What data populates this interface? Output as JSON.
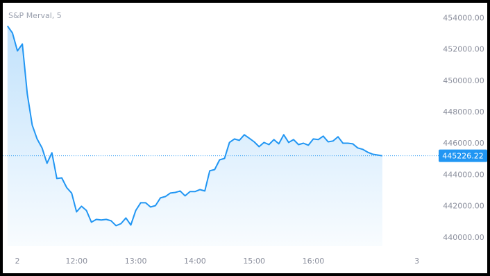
{
  "chart_data": {
    "type": "line",
    "title": "S&P Merval, 5",
    "x": [
      650,
      655,
      660,
      665,
      670,
      675,
      680,
      685,
      690,
      695,
      700,
      705,
      710,
      715,
      720,
      725,
      730,
      735,
      740,
      745,
      750,
      755,
      760,
      765,
      770,
      775,
      780,
      785,
      790,
      795,
      800,
      805,
      810,
      815,
      820,
      825,
      830,
      835,
      840,
      845,
      850,
      855,
      860,
      865,
      870,
      875,
      880,
      885,
      890,
      895,
      900,
      905,
      910,
      915,
      920,
      925,
      930,
      935,
      940,
      945,
      950,
      955,
      960,
      965,
      970,
      975,
      980,
      985,
      990,
      995,
      1000,
      1005,
      1010,
      1015,
      1020,
      1025,
      1030
    ],
    "series": [
      {
        "name": "S&P Merval",
        "color": "#2196f3",
        "values": [
          453510,
          453070,
          451920,
          452360,
          449180,
          447190,
          446300,
          445730,
          444750,
          445420,
          443780,
          443820,
          443200,
          442850,
          441650,
          442010,
          441740,
          440990,
          441170,
          441130,
          441170,
          441080,
          440770,
          440900,
          441260,
          440810,
          441740,
          442230,
          442230,
          441960,
          442050,
          442540,
          442630,
          442850,
          442890,
          442980,
          442670,
          442940,
          442940,
          443070,
          442980,
          444270,
          444350,
          444970,
          445060,
          446080,
          446300,
          446210,
          446570,
          446350,
          446120,
          445810,
          446080,
          445940,
          446260,
          445990,
          446570,
          446080,
          446260,
          445940,
          446030,
          445900,
          446300,
          446260,
          446480,
          446120,
          446170,
          446440,
          446030,
          446030,
          445990,
          445730,
          445640,
          445460,
          445330,
          445280,
          445226.22
        ]
      }
    ],
    "xlim": [
      648,
      1080
    ],
    "xticks": [
      {
        "value": 660,
        "label": "2"
      },
      {
        "value": 720,
        "label": "12:00"
      },
      {
        "value": 780,
        "label": "13:00"
      },
      {
        "value": 840,
        "label": "14:00"
      },
      {
        "value": 900,
        "label": "15:00"
      },
      {
        "value": 960,
        "label": "16:00"
      },
      {
        "value": 1065,
        "label": "3"
      }
    ],
    "ylim": [
      439460,
      454990
    ],
    "yticks": [
      {
        "value": 440000,
        "label": "440000.00"
      },
      {
        "value": 442000,
        "label": "442000.00"
      },
      {
        "value": 444000,
        "label": "444000.00"
      },
      {
        "value": 446000,
        "label": "446000.00"
      },
      {
        "value": 448000,
        "label": "448000.00"
      },
      {
        "value": 450000,
        "label": "450000.00"
      },
      {
        "value": 452000,
        "label": "452000.00"
      },
      {
        "value": 454000,
        "label": "454000.00"
      }
    ],
    "grid": false
  }
}
